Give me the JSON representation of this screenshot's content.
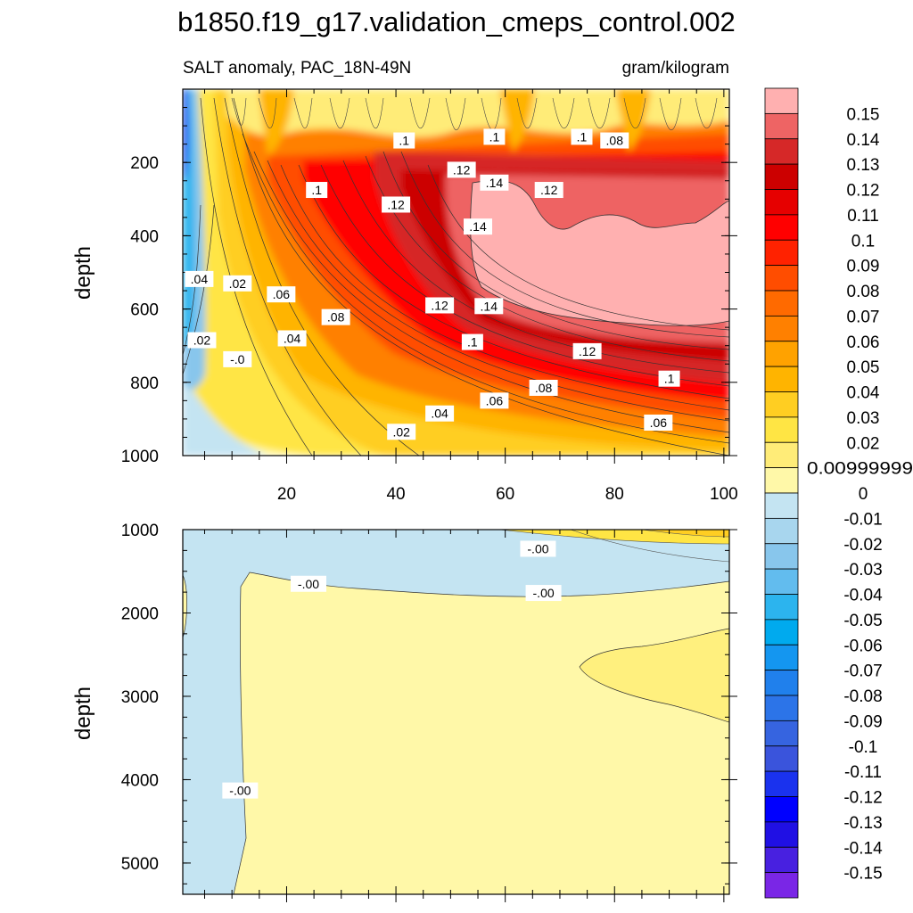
{
  "chart_data": {
    "type": "heatmap",
    "title": "b1850.f19_g17.validation_cmeps_control.002",
    "subtitle_left": "SALT anomaly, PAC_18N-49N",
    "subtitle_right": "gram/kilogram",
    "xlabel": "",
    "ylabel": "depth",
    "x_ticks": [
      "20",
      "40",
      "60",
      "80",
      "100"
    ],
    "xlim": [
      1,
      101
    ],
    "panels": [
      {
        "name": "upper",
        "ylim": [
          0,
          1000
        ],
        "y_ticks": [
          "200",
          "400",
          "600",
          "800",
          "1000"
        ],
        "contour_labels": [
          {
            "text": ".1",
            "x": 25.5,
            "y": 275
          },
          {
            "text": ".1",
            "x": 41.5,
            "y": 140
          },
          {
            "text": ".12",
            "x": 40,
            "y": 315
          },
          {
            "text": ".12",
            "x": 52,
            "y": 220
          },
          {
            "text": ".1",
            "x": 58,
            "y": 130
          },
          {
            "text": ".14",
            "x": 58,
            "y": 255
          },
          {
            "text": ".14",
            "x": 55,
            "y": 375
          },
          {
            "text": ".12",
            "x": 68,
            "y": 275
          },
          {
            "text": ".1",
            "x": 74,
            "y": 130
          },
          {
            "text": ".08",
            "x": 80,
            "y": 140
          },
          {
            "text": ".04",
            "x": 4,
            "y": 518
          },
          {
            "text": ".02",
            "x": 11,
            "y": 530
          },
          {
            "text": ".06",
            "x": 19,
            "y": 560
          },
          {
            "text": ".02",
            "x": 4.5,
            "y": 685
          },
          {
            "text": ".08",
            "x": 29,
            "y": 622
          },
          {
            "text": ".04",
            "x": 21,
            "y": 680
          },
          {
            "text": "-.0",
            "x": 11,
            "y": 737
          },
          {
            "text": ".12",
            "x": 48,
            "y": 590
          },
          {
            "text": ".14",
            "x": 57,
            "y": 592
          },
          {
            "text": ".1",
            "x": 54,
            "y": 690
          },
          {
            "text": ".12",
            "x": 75,
            "y": 715
          },
          {
            "text": ".1",
            "x": 90,
            "y": 790
          },
          {
            "text": ".08",
            "x": 67,
            "y": 815
          },
          {
            "text": ".06",
            "x": 58,
            "y": 850
          },
          {
            "text": ".04",
            "x": 48,
            "y": 885
          },
          {
            "text": ".02",
            "x": 41,
            "y": 935
          },
          {
            "text": ".06",
            "x": 88,
            "y": 910
          }
        ]
      },
      {
        "name": "lower",
        "ylim": [
          1000,
          5375
        ],
        "y_ticks": [
          "1000",
          "2000",
          "3000",
          "4000",
          "5000"
        ],
        "contour_labels": [
          {
            "text": "-.00",
            "x": 66,
            "y": 1230
          },
          {
            "text": "-.00",
            "x": 24,
            "y": 1650
          },
          {
            "text": "-.00",
            "x": 67,
            "y": 1760
          },
          {
            "text": "-.00",
            "x": 11.5,
            "y": 4130
          }
        ]
      }
    ],
    "colorbar": {
      "labels": [
        "0.15",
        "0.14",
        "0.13",
        "0.12",
        "0.11",
        "0.1",
        "0.09",
        "0.08",
        "0.07",
        "0.06",
        "0.05",
        "0.04",
        "0.03",
        "0.02",
        "0.00999999",
        "0",
        "-0.01",
        "-0.02",
        "-0.03",
        "-0.04",
        "-0.05",
        "-0.06",
        "-0.07",
        "-0.08",
        "-0.09",
        "-0.1",
        "-0.11",
        "-0.12",
        "-0.13",
        "-0.14",
        "-0.15"
      ],
      "colors": [
        "#ffb0b0",
        "#ee6464",
        "#d62828",
        "#cc0000",
        "#e60000",
        "#ff0000",
        "#ff2200",
        "#ff4d00",
        "#ff6a00",
        "#ff8000",
        "#ffa200",
        "#ffb400",
        "#ffce22",
        "#ffe544",
        "#ffec78",
        "#fff8a8",
        "#c4e4f2",
        "#a8d6ee",
        "#88c6ec",
        "#62bcee",
        "#2cb4ee",
        "#00aaee",
        "#1496f0",
        "#2080ec",
        "#2c74e8",
        "#3664e0",
        "#3a54dc",
        "#1a32ee",
        "#0000ff",
        "#2010e4",
        "#4820e0",
        "#7a26e6"
      ]
    }
  }
}
